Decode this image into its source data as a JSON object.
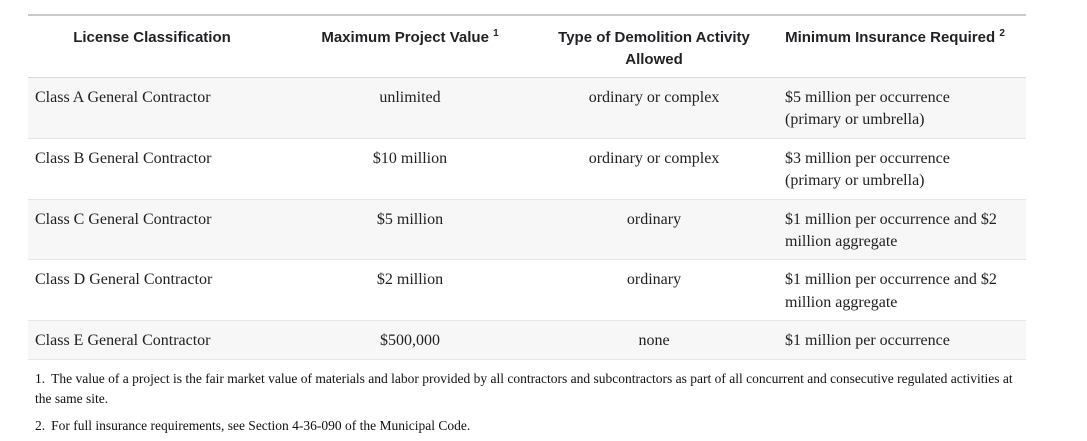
{
  "table": {
    "columns": [
      {
        "label": "License Classification",
        "sup": ""
      },
      {
        "label": "Maximum Project Value",
        "sup": "1"
      },
      {
        "label": "Type of Demolition Activity Allowed",
        "sup": ""
      },
      {
        "label": "Minimum Insurance Required",
        "sup": "2"
      }
    ],
    "rows": [
      {
        "license": "Class A General Contractor",
        "max_value": "unlimited",
        "activity": "ordinary or complex",
        "insurance": "$5 million per occurrence (primary or umbrella)"
      },
      {
        "license": "Class B General Contractor",
        "max_value": "$10 million",
        "activity": "ordinary or complex",
        "insurance": "$3 million per occurrence (primary or umbrella)"
      },
      {
        "license": "Class C General Contractor",
        "max_value": "$5 million",
        "activity": "ordinary",
        "insurance": "$1 million per occurrence and $2 million aggregate"
      },
      {
        "license": "Class D General Contractor",
        "max_value": "$2 million",
        "activity": "ordinary",
        "insurance": "$1 million per occurrence and $2 million aggregate"
      },
      {
        "license": "Class E General Contractor",
        "max_value": "$500,000",
        "activity": "none",
        "insurance": "$1 million per occurrence"
      }
    ]
  },
  "footnotes": [
    {
      "marker": "1.",
      "text": "The value of a project is the fair market value of materials and labor provided by all contractors and subcontractors as part of all concurrent and consecutive regulated activities at the same site."
    },
    {
      "marker": "2.",
      "text": "For full insurance requirements, see Section 4-36-090 of the Municipal Code."
    }
  ],
  "colors": {
    "stripe_row_bg": "#f7f7f8",
    "table_top_border": "#c9c9c9",
    "row_border": "#e6e6e6",
    "header_text": "#1f2124",
    "body_text": "#202122"
  }
}
